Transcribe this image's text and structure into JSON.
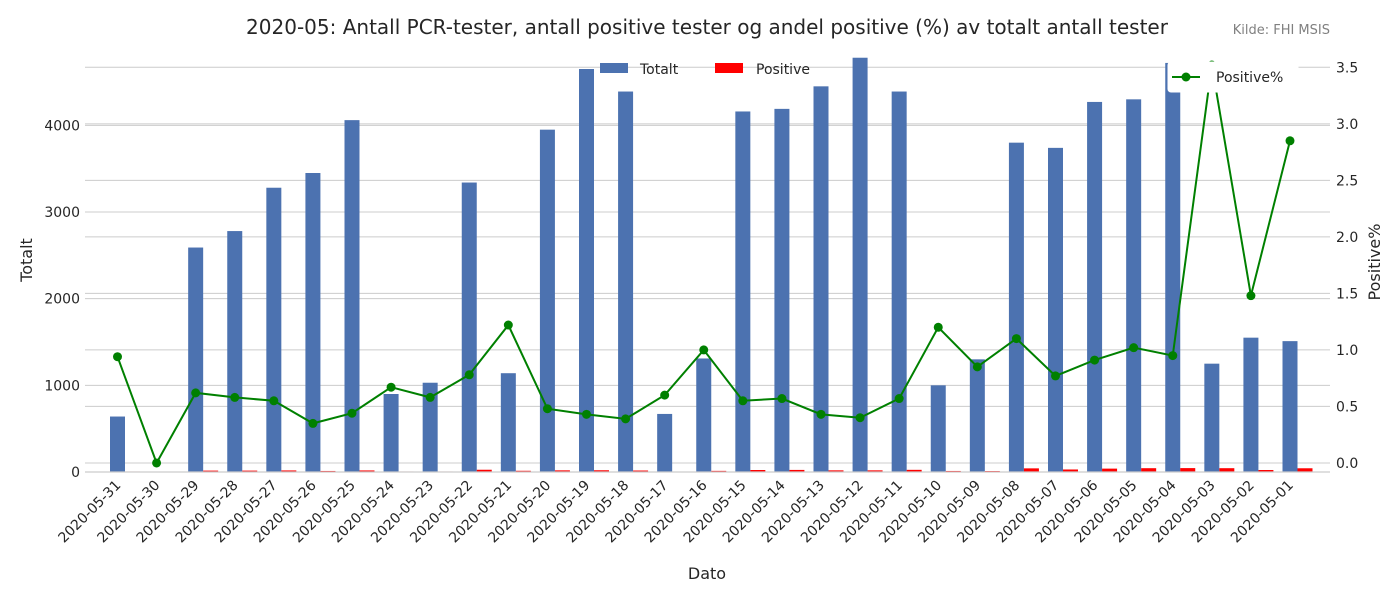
{
  "chart_data": {
    "type": "bar",
    "title": "2020-05: Antall PCR-tester, antall positive tester og andel positive (%) av totalt antall tester",
    "source": "Kilde: FHI MSIS",
    "xlabel": "Dato",
    "ylabel_left": "Totalt",
    "ylabel_right": "Positive%",
    "ylim_left": [
      0,
      4800
    ],
    "ylim_right": [
      -0.08,
      3.6
    ],
    "yticks_left": [
      0,
      1000,
      2000,
      3000,
      4000
    ],
    "yticks_right": [
      0.0,
      0.5,
      1.0,
      1.5,
      2.0,
      2.5,
      3.0,
      3.5
    ],
    "grid": true,
    "legend_bars_position": "top-center",
    "legend_line_position": "top-right",
    "categories": [
      "2020-05-31",
      "2020-05-30",
      "2020-05-29",
      "2020-05-28",
      "2020-05-27",
      "2020-05-26",
      "2020-05-25",
      "2020-05-24",
      "2020-05-23",
      "2020-05-22",
      "2020-05-21",
      "2020-05-20",
      "2020-05-19",
      "2020-05-18",
      "2020-05-17",
      "2020-05-16",
      "2020-05-15",
      "2020-05-14",
      "2020-05-13",
      "2020-05-12",
      "2020-05-11",
      "2020-05-10",
      "2020-05-09",
      "2020-05-08",
      "2020-05-07",
      "2020-05-06",
      "2020-05-05",
      "2020-05-04",
      "2020-05-03",
      "2020-05-02",
      "2020-05-01"
    ],
    "series": [
      {
        "name": "Totalt",
        "kind": "bar",
        "color": "#4c72b0",
        "values": [
          640,
          0,
          2590,
          2780,
          3280,
          3450,
          4060,
          900,
          1030,
          3340,
          1140,
          3950,
          4650,
          4390,
          670,
          1310,
          4160,
          4190,
          4450,
          4780,
          4390,
          1000,
          1300,
          3800,
          3740,
          4270,
          4300,
          4720,
          1250,
          1550,
          1510
        ]
      },
      {
        "name": "Positive",
        "kind": "bar",
        "color": "#ff0000",
        "values": [
          6,
          0,
          16,
          16,
          18,
          12,
          18,
          6,
          6,
          26,
          14,
          19,
          20,
          17,
          4,
          13,
          23,
          24,
          19,
          19,
          25,
          12,
          11,
          42,
          29,
          39,
          44,
          45,
          44,
          23,
          43
        ]
      },
      {
        "name": "Positive%",
        "kind": "line",
        "color": "#008000",
        "values": [
          0.94,
          0.0,
          0.62,
          0.58,
          0.55,
          0.35,
          0.44,
          0.67,
          0.58,
          0.78,
          1.22,
          0.48,
          0.43,
          0.39,
          0.6,
          1.0,
          0.55,
          0.57,
          0.43,
          0.4,
          0.57,
          1.2,
          0.85,
          1.1,
          0.77,
          0.91,
          1.02,
          0.95,
          3.52,
          1.48,
          2.85
        ]
      }
    ]
  }
}
